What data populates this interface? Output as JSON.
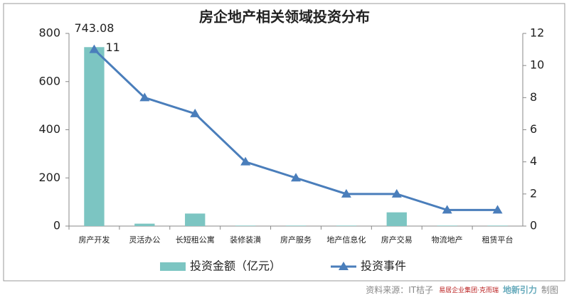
{
  "chart_data": {
    "type": "bar-line",
    "title": "房企地产相关领域投资分布",
    "categories": [
      "房产开发",
      "灵活办公",
      "长短租公寓",
      "装修装潢",
      "房产服务",
      "地产信息化",
      "房产交易",
      "物流地产",
      "租赁平台"
    ],
    "series": [
      {
        "name": "投资金额（亿元）",
        "type": "bar",
        "color": "#7cc5c2",
        "axis": "y",
        "values": [
          743.08,
          10,
          52,
          2,
          2,
          2,
          57,
          2,
          2
        ],
        "value_labels": [
          "743.08",
          null,
          null,
          null,
          null,
          null,
          null,
          null,
          null
        ]
      },
      {
        "name": "投资事件",
        "type": "line",
        "color": "#4a7ebb",
        "axis": "y2",
        "values": [
          11,
          8,
          7,
          4,
          3,
          2,
          2,
          1,
          1
        ],
        "value_labels": [
          "11",
          null,
          null,
          null,
          null,
          null,
          null,
          null,
          null
        ]
      }
    ],
    "ylim": [
      0,
      800
    ],
    "yticks": [
      0,
      200,
      400,
      600,
      800
    ],
    "y2lim": [
      0,
      12
    ],
    "y2ticks": [
      0,
      2,
      4,
      6,
      8,
      10,
      12
    ],
    "legend": "bottom",
    "source": [
      "资料来源：IT桔子",
      "易居企业集团·克而瑞",
      "地新引力",
      "制图"
    ]
  }
}
